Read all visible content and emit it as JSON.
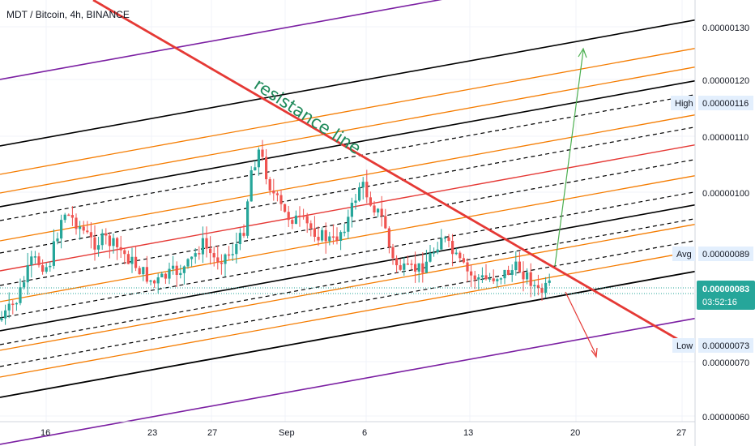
{
  "chart_data": {
    "type": "candlestick",
    "title": "MDT / Bitcoin, 4h, BINANCE",
    "annotation": "resistance line",
    "x_ticks": [
      "16",
      "23",
      "27",
      "Sep",
      "6",
      "13",
      "20",
      "27"
    ],
    "y_ticks": [
      "0.00000130",
      "0.00000120",
      "0.00000110",
      "0.00000100",
      "0.00000070",
      "0.00000060"
    ],
    "markers": [
      {
        "label": "High",
        "value": "0.00000116"
      },
      {
        "label": "Avg",
        "value": "0.00000089"
      },
      {
        "label": "Low",
        "value": "0.00000073"
      }
    ],
    "last_price": {
      "value": "0.00000083",
      "countdown": "03:52:16"
    },
    "ylim": [
      5.9e-07,
      1.34e-06
    ],
    "colors": {
      "up": "#26a69a",
      "down": "#ef5350",
      "resistance": "#e53935",
      "channel": "#000000",
      "fib": "#f57c00",
      "outer": "#7b1fa2",
      "projection_up": "#4caf50",
      "projection_down": "#e53935",
      "last_price_bg": "#26a69a"
    }
  }
}
